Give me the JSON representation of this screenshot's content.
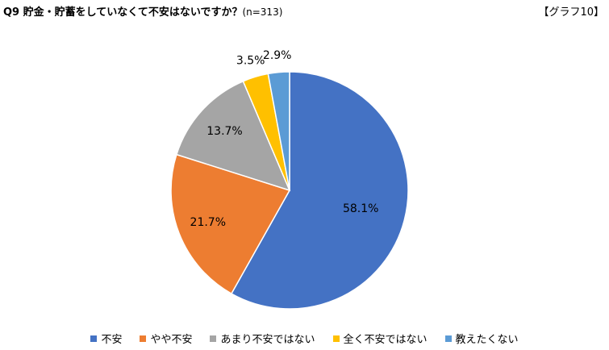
{
  "header": {
    "title": "Q9 貯金・貯蓄をしていなくて不安はないですか？",
    "sample": "(n=313)",
    "graph_tag": "【グラフ10】"
  },
  "chart_data": {
    "type": "pie",
    "title": "Q9 貯金・貯蓄をしていなくて不安はないですか？",
    "subtitle": "(n=313)",
    "categories": [
      "不安",
      "やや不安",
      "あまり不安ではない",
      "全く不安ではない",
      "教えたくない"
    ],
    "values": [
      58.1,
      21.7,
      13.7,
      3.5,
      2.9
    ],
    "labels": [
      "58.1%",
      "21.7%",
      "13.7%",
      "3.5%",
      "2.9%"
    ],
    "colors": [
      "#4472C4",
      "#ED7D31",
      "#A5A5A5",
      "#FFC000",
      "#5B9BD5"
    ],
    "start": "12 o'clock",
    "direction": "clockwise",
    "legend_position": "bottom"
  }
}
